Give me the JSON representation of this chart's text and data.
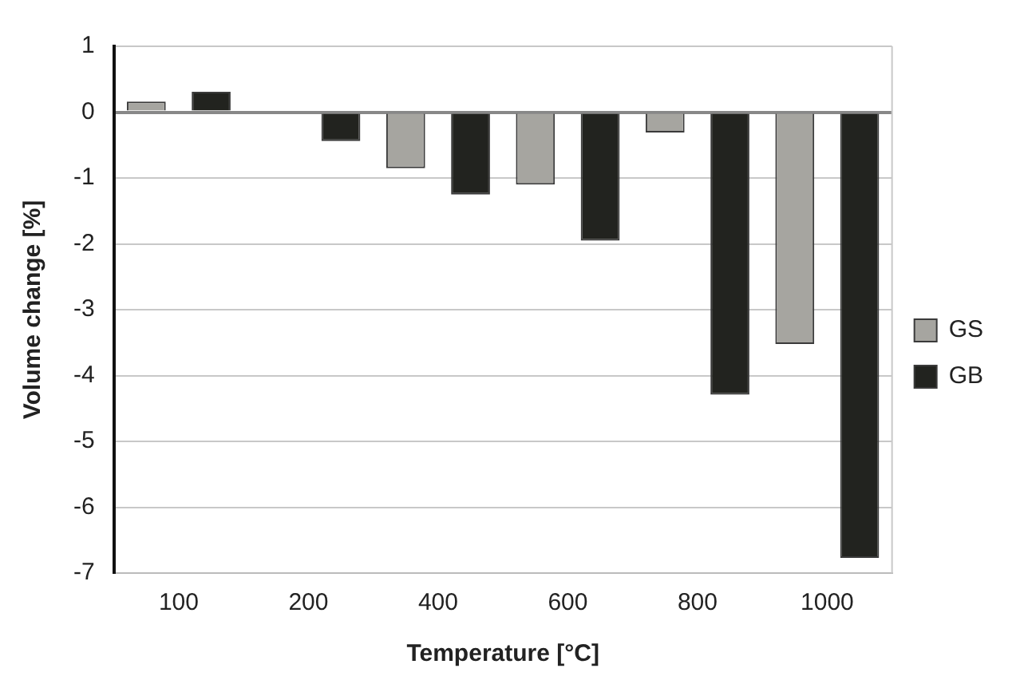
{
  "chart_data": {
    "type": "bar",
    "xlabel": "Temperature [°C]",
    "ylabel": "Volume change [%]",
    "categories": [
      "100",
      "200",
      "400",
      "600",
      "800",
      "1000"
    ],
    "series": [
      {
        "name": "GS",
        "color": "#a6a5a0",
        "values": [
          0.16,
          0,
          -0.85,
          -1.1,
          -0.31,
          -3.52
        ]
      },
      {
        "name": "GB",
        "color": "#22231f",
        "values": [
          0.31,
          -0.44,
          -1.25,
          -1.95,
          -4.29,
          -6.77
        ]
      }
    ],
    "ylim": [
      -7,
      1
    ],
    "yticks": [
      -7,
      -6,
      -5,
      -4,
      -3,
      -2,
      -1,
      0,
      1
    ],
    "grid": "y",
    "legend": "right"
  }
}
